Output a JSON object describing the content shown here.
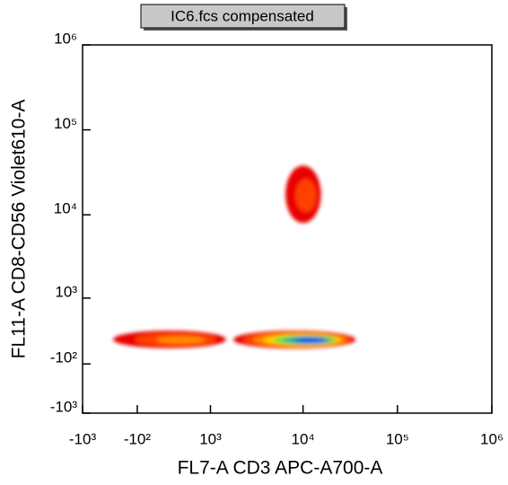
{
  "chart_data": {
    "type": "density",
    "title": "IC6.fcs compensated",
    "x_label": "FL7-A CD3 APC-A700-A",
    "y_label": "FL11-A CD8-CD56 Violet610-A",
    "xscale": "biexponential",
    "yscale": "biexponential",
    "xlim": [
      -1000,
      1000000
    ],
    "ylim": [
      -1000,
      1000000
    ],
    "xticks": [
      {
        "value": -1000,
        "label": "-10³"
      },
      {
        "value": -100,
        "label": "-10²"
      },
      {
        "value": 1000,
        "label": "10³"
      },
      {
        "value": 10000,
        "label": "10⁴"
      },
      {
        "value": 100000,
        "label": "10⁵"
      },
      {
        "value": 1000000,
        "label": "10⁶"
      }
    ],
    "yticks": [
      {
        "value": -1000,
        "label": "-10³"
      },
      {
        "value": -100,
        "label": "-10²"
      },
      {
        "value": 1000,
        "label": "10³"
      },
      {
        "value": 10000,
        "label": "10⁴"
      },
      {
        "value": 100000,
        "label": "10⁵"
      },
      {
        "value": 1000000,
        "label": "10⁶"
      }
    ],
    "colormap": [
      "#e80000",
      "#ff4000",
      "#ff8a00",
      "#ffd000",
      "#60e040",
      "#00b0a0",
      "#2030ff"
    ],
    "clusters": [
      {
        "xrange": [
          6500,
          15500
        ],
        "yrange": [
          8000,
          38000
        ],
        "peak": 1
      },
      {
        "xrange": [
          -400,
          1500
        ],
        "yrange": [
          90,
          320
        ],
        "peak": 2
      },
      {
        "xrange": [
          1800,
          36000
        ],
        "yrange": [
          85,
          320
        ],
        "peak": 6
      }
    ]
  }
}
